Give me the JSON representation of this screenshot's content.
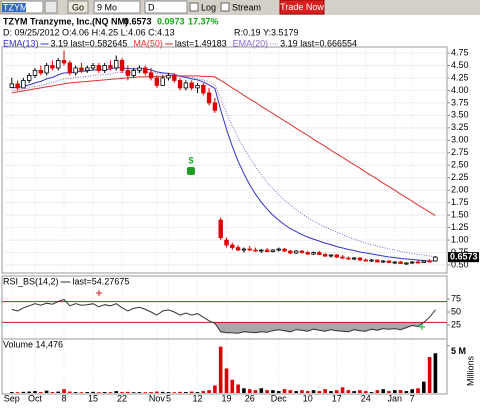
{
  "toolbar": {
    "symbol": "TZYM",
    "go": "Go",
    "period": "9 Mo",
    "interval": "D",
    "log": "Log",
    "stream": "Stream",
    "trade": "Trade Now"
  },
  "header": {
    "name": "TZYM Tranzyme, Inc.(NQ NM)",
    "last": "0.6573",
    "change": "0.0973",
    "pct": "17.37%",
    "info": "D: 09/25/2012 O:4.06 H:4.25 L:4.06 C:4.13",
    "r": "R:0.19",
    "y": "Y:3.5179"
  },
  "chart_data": [
    {
      "type": "candlestick",
      "ylim": [
        0.4,
        4.85
      ],
      "xlim": [
        -1,
        75
      ],
      "yticks": [
        4.75,
        {
          "value": 4.5,
          "label": "4.50"
        },
        4.25,
        {
          "value": 4,
          "label": "4.00"
        },
        3.75,
        {
          "value": 3.5,
          "label": "3.50"
        },
        3.25,
        {
          "value": 3,
          "label": "3.00"
        },
        2.75,
        {
          "value": 2.5,
          "label": "2.50"
        },
        2.25,
        {
          "value": 2,
          "label": "2.00"
        },
        1.75,
        {
          "value": 1.5,
          "label": "1.50"
        },
        1.25,
        {
          "value": 1,
          "label": "1.00"
        },
        0.75,
        {
          "value": 0.5,
          "label": "0.50"
        }
      ],
      "up_color": "#000000",
      "down_color": "#dd0000",
      "annotations": [
        "$"
      ],
      "ohlc": [
        [
          4.06,
          4.25,
          4.06,
          4.13
        ],
        [
          4.13,
          4.2,
          4.0,
          4.05
        ],
        [
          4.05,
          4.25,
          4.05,
          4.2
        ],
        [
          4.2,
          4.35,
          4.15,
          4.3
        ],
        [
          4.3,
          4.45,
          4.25,
          4.4
        ],
        [
          4.4,
          4.5,
          4.3,
          4.35
        ],
        [
          4.35,
          4.55,
          4.3,
          4.5
        ],
        [
          4.5,
          4.6,
          4.4,
          4.45
        ],
        [
          4.45,
          4.65,
          4.4,
          4.6
        ],
        [
          4.6,
          4.8,
          4.5,
          4.55
        ],
        [
          4.55,
          4.6,
          4.3,
          4.35
        ],
        [
          4.35,
          4.5,
          4.3,
          4.45
        ],
        [
          4.45,
          4.55,
          4.35,
          4.4
        ],
        [
          4.4,
          4.5,
          4.35,
          4.45
        ],
        [
          4.45,
          4.55,
          4.4,
          4.5
        ],
        [
          4.5,
          4.55,
          4.35,
          4.4
        ],
        [
          4.4,
          4.55,
          4.35,
          4.5
        ],
        [
          4.5,
          4.6,
          4.4,
          4.45
        ],
        [
          4.45,
          4.7,
          4.4,
          4.6
        ],
        [
          4.6,
          4.65,
          4.35,
          4.4
        ],
        [
          4.4,
          4.5,
          4.2,
          4.3
        ],
        [
          4.3,
          4.45,
          4.25,
          4.4
        ],
        [
          4.4,
          4.5,
          4.35,
          4.45
        ],
        [
          4.45,
          4.5,
          4.3,
          4.35
        ],
        [
          4.35,
          4.45,
          4.2,
          4.25
        ],
        [
          4.25,
          4.3,
          4.05,
          4.1
        ],
        [
          4.1,
          4.3,
          4.1,
          4.25
        ],
        [
          4.25,
          4.35,
          4.2,
          4.3
        ],
        [
          4.3,
          4.35,
          4.15,
          4.2
        ],
        [
          4.2,
          4.25,
          4.0,
          4.05
        ],
        [
          4.05,
          4.2,
          4.0,
          4.15
        ],
        [
          4.15,
          4.2,
          4.0,
          4.05
        ],
        [
          4.05,
          4.15,
          3.95,
          4.1
        ],
        [
          4.1,
          4.15,
          3.9,
          3.95
        ],
        [
          3.95,
          4.05,
          3.7,
          3.75
        ],
        [
          3.75,
          3.85,
          3.55,
          3.6
        ],
        [
          1.4,
          1.45,
          1.0,
          1.05
        ],
        [
          1.0,
          1.05,
          0.85,
          0.9
        ],
        [
          0.9,
          0.95,
          0.8,
          0.85
        ],
        [
          0.85,
          0.9,
          0.78,
          0.8
        ],
        [
          0.8,
          0.85,
          0.75,
          0.82
        ],
        [
          0.82,
          0.88,
          0.78,
          0.8
        ],
        [
          0.8,
          0.85,
          0.76,
          0.78
        ],
        [
          0.78,
          0.82,
          0.74,
          0.8
        ],
        [
          0.8,
          0.84,
          0.76,
          0.77
        ],
        [
          0.77,
          0.82,
          0.75,
          0.8
        ],
        [
          0.8,
          0.85,
          0.77,
          0.82
        ],
        [
          0.82,
          0.84,
          0.76,
          0.78
        ],
        [
          0.78,
          0.8,
          0.72,
          0.74
        ],
        [
          0.74,
          0.8,
          0.72,
          0.78
        ],
        [
          0.78,
          0.8,
          0.73,
          0.75
        ],
        [
          0.75,
          0.78,
          0.7,
          0.72
        ],
        [
          0.72,
          0.77,
          0.7,
          0.75
        ],
        [
          0.75,
          0.78,
          0.7,
          0.71
        ],
        [
          0.71,
          0.74,
          0.66,
          0.68
        ],
        [
          0.68,
          0.72,
          0.65,
          0.7
        ],
        [
          0.7,
          0.72,
          0.64,
          0.66
        ],
        [
          0.66,
          0.7,
          0.62,
          0.64
        ],
        [
          0.64,
          0.67,
          0.6,
          0.62
        ],
        [
          0.62,
          0.66,
          0.6,
          0.64
        ],
        [
          0.64,
          0.66,
          0.58,
          0.6
        ],
        [
          0.6,
          0.63,
          0.57,
          0.58
        ],
        [
          0.58,
          0.62,
          0.56,
          0.6
        ],
        [
          0.6,
          0.61,
          0.55,
          0.56
        ],
        [
          0.56,
          0.6,
          0.54,
          0.58
        ],
        [
          0.58,
          0.6,
          0.54,
          0.55
        ],
        [
          0.55,
          0.58,
          0.52,
          0.56
        ],
        [
          0.56,
          0.58,
          0.52,
          0.53
        ],
        [
          0.53,
          0.56,
          0.5,
          0.54
        ],
        [
          0.54,
          0.58,
          0.52,
          0.56
        ],
        [
          0.56,
          0.6,
          0.54,
          0.55
        ],
        [
          0.55,
          0.6,
          0.54,
          0.58
        ],
        [
          0.58,
          0.62,
          0.55,
          0.56
        ],
        [
          0.58,
          0.68,
          0.57,
          0.6573
        ]
      ],
      "overlays": [
        {
          "name": "EMA(13)",
          "legend_text": "3.19 last=0.582645",
          "color": "#3333cc",
          "style": "solid",
          "values": [
            4.05,
            4.06,
            4.08,
            4.11,
            4.15,
            4.18,
            4.23,
            4.26,
            4.31,
            4.35,
            4.35,
            4.37,
            4.38,
            4.39,
            4.41,
            4.41,
            4.42,
            4.43,
            4.46,
            4.45,
            4.44,
            4.43,
            4.44,
            4.43,
            4.41,
            4.37,
            4.35,
            4.34,
            4.32,
            4.28,
            4.26,
            4.23,
            4.21,
            4.17,
            4.11,
            4.04,
            3.61,
            3.22,
            2.88,
            2.58,
            2.33,
            2.11,
            1.92,
            1.76,
            1.62,
            1.5,
            1.4,
            1.31,
            1.23,
            1.17,
            1.11,
            1.06,
            1.02,
            0.98,
            0.94,
            0.91,
            0.87,
            0.84,
            0.81,
            0.79,
            0.76,
            0.74,
            0.72,
            0.7,
            0.68,
            0.66,
            0.65,
            0.63,
            0.62,
            0.61,
            0.6,
            0.59,
            0.58,
            0.583
          ]
        },
        {
          "name": "MA(50)",
          "legend_text": "last=1.49183",
          "color": "#dd3333",
          "style": "solid",
          "values": [
            3.95,
            3.97,
            3.99,
            4.01,
            4.03,
            4.05,
            4.07,
            4.09,
            4.11,
            4.13,
            4.15,
            4.16,
            4.17,
            4.18,
            4.19,
            4.2,
            4.21,
            4.22,
            4.23,
            4.24,
            4.25,
            4.26,
            4.27,
            4.27,
            4.28,
            4.28,
            4.28,
            4.29,
            4.29,
            4.29,
            4.29,
            4.29,
            4.29,
            4.28,
            4.28,
            4.27,
            4.2,
            4.13,
            4.05,
            3.98,
            3.9,
            3.83,
            3.76,
            3.68,
            3.61,
            3.54,
            3.46,
            3.39,
            3.32,
            3.24,
            3.17,
            3.1,
            3.02,
            2.95,
            2.88,
            2.8,
            2.73,
            2.66,
            2.58,
            2.51,
            2.44,
            2.36,
            2.29,
            2.22,
            2.14,
            2.07,
            2.0,
            1.92,
            1.85,
            1.78,
            1.7,
            1.63,
            1.56,
            1.49
          ]
        },
        {
          "name": "EMA(20)",
          "legend_text": "3.19 last=0.666554",
          "color": "#8866cc",
          "style": "dotted",
          "values": [
            4.0,
            4.01,
            4.03,
            4.05,
            4.08,
            4.1,
            4.13,
            4.16,
            4.2,
            4.23,
            4.24,
            4.26,
            4.27,
            4.28,
            4.3,
            4.31,
            4.32,
            4.33,
            4.36,
            4.36,
            4.36,
            4.36,
            4.37,
            4.37,
            4.36,
            4.34,
            4.33,
            4.33,
            4.32,
            4.29,
            4.28,
            4.26,
            4.24,
            4.21,
            4.17,
            4.12,
            3.83,
            3.55,
            3.29,
            3.05,
            2.84,
            2.65,
            2.47,
            2.31,
            2.16,
            2.03,
            1.91,
            1.8,
            1.7,
            1.61,
            1.53,
            1.45,
            1.38,
            1.32,
            1.26,
            1.21,
            1.16,
            1.11,
            1.06,
            1.02,
            0.98,
            0.94,
            0.91,
            0.88,
            0.85,
            0.82,
            0.8,
            0.77,
            0.75,
            0.73,
            0.71,
            0.7,
            0.68,
            0.667
          ]
        }
      ]
    },
    {
      "type": "line",
      "title": "RSI_BS(14,2)",
      "last_label": "last=54.27675",
      "color": "#333333",
      "ylim": [
        0,
        100
      ],
      "yticks": [
        25,
        50,
        75
      ],
      "bands": [
        30,
        70
      ],
      "band_color": "#bb2222",
      "fill_color": "#a8a8a8",
      "values": [
        55,
        52,
        58,
        62,
        66,
        63,
        67,
        65,
        70,
        74,
        62,
        66,
        63,
        64,
        66,
        60,
        64,
        62,
        66,
        58,
        52,
        57,
        59,
        55,
        50,
        44,
        52,
        54,
        50,
        44,
        48,
        44,
        47,
        40,
        33,
        28,
        12,
        10,
        10,
        9,
        12,
        11,
        10,
        12,
        11,
        14,
        16,
        14,
        12,
        16,
        15,
        13,
        17,
        15,
        13,
        16,
        14,
        13,
        12,
        16,
        14,
        13,
        17,
        15,
        18,
        17,
        18,
        16,
        20,
        24,
        22,
        30,
        40,
        54.27675
      ]
    },
    {
      "type": "bar",
      "title": "Volume 14,476",
      "y_axis_label": "Millions",
      "ylim": [
        0,
        5.5
      ],
      "yticks": [
        {
          "value": 5,
          "label": "5 M"
        }
      ],
      "xlim": [
        -1,
        75
      ],
      "xticks": [
        {
          "value": 0,
          "label": "Sep"
        },
        {
          "value": 4,
          "label": "Oct"
        },
        {
          "value": 9,
          "label": "8"
        },
        {
          "value": 14,
          "label": "15"
        },
        {
          "value": 19,
          "label": "22"
        },
        {
          "value": 25,
          "label": "Nov"
        },
        {
          "value": 27,
          "label": "5"
        },
        {
          "value": 32,
          "label": "12"
        },
        {
          "value": 37,
          "label": "19"
        },
        {
          "value": 41,
          "label": "26"
        },
        {
          "value": 46,
          "label": "Dec"
        },
        {
          "value": 51,
          "label": "10"
        },
        {
          "value": 56,
          "label": "17"
        },
        {
          "value": 61,
          "label": "24"
        },
        {
          "value": 66,
          "label": "Jan"
        },
        {
          "value": 69,
          "label": "7"
        }
      ],
      "values": [
        0.1,
        0.08,
        0.12,
        0.15,
        0.2,
        0.1,
        0.25,
        0.1,
        0.15,
        0.4,
        0.15,
        0.1,
        0.08,
        0.1,
        0.12,
        0.08,
        0.1,
        0.09,
        0.2,
        0.1,
        0.12,
        0.08,
        0.1,
        0.08,
        0.1,
        0.15,
        0.12,
        0.1,
        0.08,
        0.12,
        0.1,
        0.15,
        0.1,
        0.2,
        0.3,
        0.8,
        4.9,
        2.6,
        1.4,
        0.9,
        0.5,
        0.4,
        0.3,
        0.5,
        0.3,
        0.3,
        0.2,
        0.4,
        0.3,
        0.2,
        0.3,
        0.2,
        0.3,
        0.2,
        0.4,
        0.2,
        0.3,
        0.6,
        0.3,
        0.2,
        0.3,
        0.2,
        0.1,
        0.3,
        0.4,
        0.2,
        0.3,
        0.3,
        0.2,
        0.4,
        0.5,
        1.2,
        3.8,
        4.2
      ]
    }
  ]
}
